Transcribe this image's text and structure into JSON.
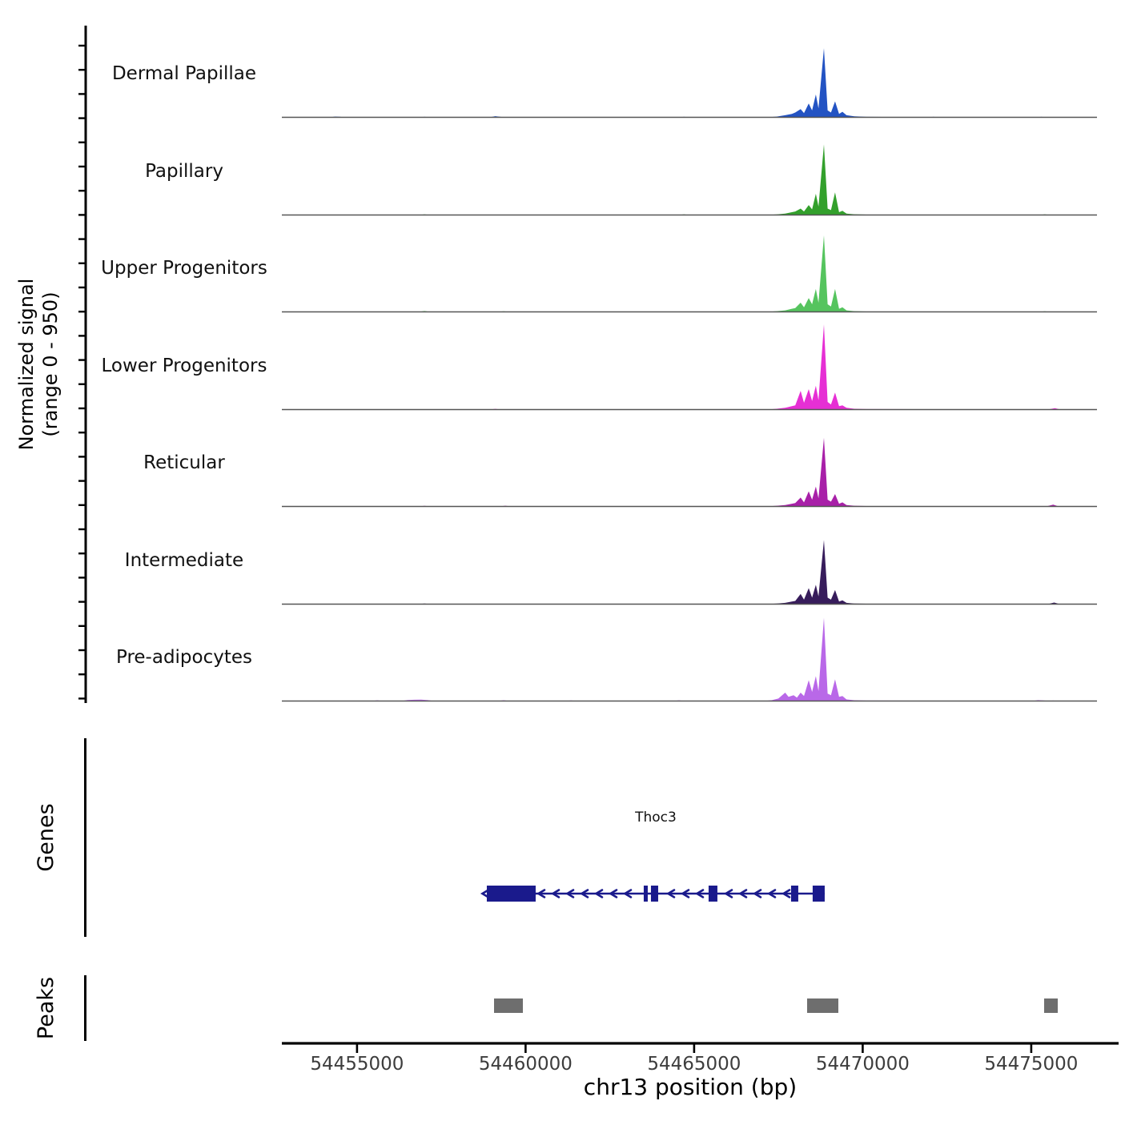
{
  "figure": {
    "y_axis_label_line1": "Normalized signal",
    "y_axis_label_line2": "(range 0 - 950)",
    "genes_section_label": "Genes",
    "peaks_section_label": "Peaks",
    "x_axis_label": "chr13 position (bp)",
    "gene_name": "Thoc3"
  },
  "chart_data": {
    "type": "area",
    "title": "",
    "chromosome": "chr13",
    "x_domain": [
      54452770,
      54476950
    ],
    "y_range_per_track": [
      0,
      950
    ],
    "x_ticks": [
      54455000,
      54460000,
      54465000,
      54470000,
      54475000
    ],
    "legend_position": "left-track-labels",
    "grid": false,
    "tracks": [
      {
        "name": "Dermal Papillae",
        "color": "#2353c3",
        "points": [
          [
            54452770,
            1
          ],
          [
            54454200,
            1
          ],
          [
            54454350,
            8
          ],
          [
            54454500,
            5
          ],
          [
            54454650,
            1
          ],
          [
            54456850,
            1
          ],
          [
            54457000,
            5
          ],
          [
            54457150,
            1
          ],
          [
            54458950,
            1
          ],
          [
            54459100,
            12
          ],
          [
            54459250,
            5
          ],
          [
            54459400,
            1
          ],
          [
            54461350,
            1
          ],
          [
            54461500,
            4
          ],
          [
            54461650,
            1
          ],
          [
            54464550,
            1
          ],
          [
            54464700,
            5
          ],
          [
            54464850,
            1
          ],
          [
            54467200,
            1
          ],
          [
            54467450,
            8
          ],
          [
            54467700,
            23
          ],
          [
            54467900,
            38
          ],
          [
            54468000,
            53
          ],
          [
            54468160,
            91
          ],
          [
            54468260,
            46
          ],
          [
            54468400,
            152
          ],
          [
            54468500,
            76
          ],
          [
            54468610,
            251
          ],
          [
            54468690,
            99
          ],
          [
            54468850,
            760
          ],
          [
            54468960,
            76
          ],
          [
            54469060,
            53
          ],
          [
            54469180,
            175
          ],
          [
            54469300,
            38
          ],
          [
            54469400,
            61
          ],
          [
            54469520,
            23
          ],
          [
            54469750,
            11
          ],
          [
            54470100,
            5
          ],
          [
            54471950,
            1
          ],
          [
            54472100,
            5
          ],
          [
            54472250,
            1
          ],
          [
            54475150,
            1
          ],
          [
            54475300,
            5
          ],
          [
            54475450,
            1
          ],
          [
            54476950,
            1
          ]
        ]
      },
      {
        "name": "Papillary",
        "color": "#33a02c",
        "points": [
          [
            54452770,
            1
          ],
          [
            54456850,
            1
          ],
          [
            54457000,
            7
          ],
          [
            54457150,
            1
          ],
          [
            54464550,
            1
          ],
          [
            54464700,
            6
          ],
          [
            54464850,
            1
          ],
          [
            54467200,
            1
          ],
          [
            54467450,
            6
          ],
          [
            54467700,
            16
          ],
          [
            54467900,
            31
          ],
          [
            54468000,
            39
          ],
          [
            54468160,
            70
          ],
          [
            54468260,
            39
          ],
          [
            54468400,
            109
          ],
          [
            54468500,
            62
          ],
          [
            54468610,
            233
          ],
          [
            54468690,
            93
          ],
          [
            54468850,
            775
          ],
          [
            54468960,
            70
          ],
          [
            54469060,
            54
          ],
          [
            54469180,
            248
          ],
          [
            54469300,
            31
          ],
          [
            54469400,
            47
          ],
          [
            54469520,
            16
          ],
          [
            54469750,
            8
          ],
          [
            54470100,
            4
          ],
          [
            54471950,
            1
          ],
          [
            54472100,
            4
          ],
          [
            54472250,
            1
          ],
          [
            54475250,
            1
          ],
          [
            54475400,
            7
          ],
          [
            54475550,
            1
          ],
          [
            54476950,
            1
          ]
        ]
      },
      {
        "name": "Upper Progenitors",
        "color": "#55c45e",
        "points": [
          [
            54452770,
            1
          ],
          [
            54456850,
            1
          ],
          [
            54457000,
            10
          ],
          [
            54457150,
            1
          ],
          [
            54459200,
            1
          ],
          [
            54459350,
            6
          ],
          [
            54459500,
            1
          ],
          [
            54467200,
            1
          ],
          [
            54467450,
            8
          ],
          [
            54467700,
            17
          ],
          [
            54467900,
            34
          ],
          [
            54468000,
            42
          ],
          [
            54468160,
            101
          ],
          [
            54468260,
            50
          ],
          [
            54468400,
            151
          ],
          [
            54468500,
            84
          ],
          [
            54468610,
            252
          ],
          [
            54468690,
            101
          ],
          [
            54468850,
            840
          ],
          [
            54468960,
            84
          ],
          [
            54469060,
            59
          ],
          [
            54469180,
            252
          ],
          [
            54469300,
            34
          ],
          [
            54469400,
            50
          ],
          [
            54469520,
            17
          ],
          [
            54469750,
            8
          ],
          [
            54470100,
            4
          ],
          [
            54475250,
            1
          ],
          [
            54475400,
            6
          ],
          [
            54475550,
            1
          ],
          [
            54476950,
            1
          ]
        ]
      },
      {
        "name": "Lower Progenitors",
        "color": "#e62fd4",
        "points": [
          [
            54452770,
            1
          ],
          [
            54458950,
            1
          ],
          [
            54459100,
            8
          ],
          [
            54459250,
            1
          ],
          [
            54461300,
            1
          ],
          [
            54461450,
            4
          ],
          [
            54461600,
            1
          ],
          [
            54467200,
            1
          ],
          [
            54467450,
            9
          ],
          [
            54467700,
            19
          ],
          [
            54467900,
            37
          ],
          [
            54468000,
            47
          ],
          [
            54468160,
            206
          ],
          [
            54468260,
            75
          ],
          [
            54468400,
            224
          ],
          [
            54468500,
            94
          ],
          [
            54468610,
            262
          ],
          [
            54468690,
            103
          ],
          [
            54468850,
            935
          ],
          [
            54468960,
            84
          ],
          [
            54469060,
            56
          ],
          [
            54469180,
            187
          ],
          [
            54469300,
            37
          ],
          [
            54469400,
            47
          ],
          [
            54469520,
            19
          ],
          [
            54469750,
            9
          ],
          [
            54470100,
            5
          ],
          [
            54475500,
            1
          ],
          [
            54475700,
            16
          ],
          [
            54475850,
            2
          ],
          [
            54476950,
            1
          ]
        ]
      },
      {
        "name": "Reticular",
        "color": "#a820a8",
        "points": [
          [
            54452770,
            1
          ],
          [
            54456850,
            1
          ],
          [
            54457000,
            7
          ],
          [
            54457150,
            1
          ],
          [
            54459250,
            1
          ],
          [
            54459400,
            8
          ],
          [
            54459550,
            1
          ],
          [
            54467200,
            1
          ],
          [
            54467450,
            8
          ],
          [
            54467700,
            15
          ],
          [
            54467900,
            30
          ],
          [
            54468000,
            38
          ],
          [
            54468160,
            98
          ],
          [
            54468260,
            45
          ],
          [
            54468400,
            166
          ],
          [
            54468500,
            75
          ],
          [
            54468610,
            219
          ],
          [
            54468690,
            91
          ],
          [
            54468850,
            755
          ],
          [
            54468960,
            75
          ],
          [
            54469060,
            53
          ],
          [
            54469180,
            136
          ],
          [
            54469300,
            30
          ],
          [
            54469400,
            45
          ],
          [
            54469520,
            15
          ],
          [
            54469750,
            8
          ],
          [
            54470100,
            4
          ],
          [
            54475450,
            1
          ],
          [
            54475650,
            20
          ],
          [
            54475800,
            2
          ],
          [
            54476950,
            1
          ]
        ]
      },
      {
        "name": "Intermediate",
        "color": "#371c5b",
        "points": [
          [
            54452770,
            1
          ],
          [
            54456850,
            1
          ],
          [
            54457000,
            7
          ],
          [
            54457150,
            1
          ],
          [
            54467200,
            1
          ],
          [
            54467450,
            7
          ],
          [
            54467700,
            14
          ],
          [
            54467900,
            28
          ],
          [
            54468000,
            35
          ],
          [
            54468160,
            113
          ],
          [
            54468260,
            49
          ],
          [
            54468400,
            176
          ],
          [
            54468500,
            71
          ],
          [
            54468610,
            212
          ],
          [
            54468690,
            85
          ],
          [
            54468850,
            705
          ],
          [
            54468960,
            71
          ],
          [
            54469060,
            49
          ],
          [
            54469180,
            155
          ],
          [
            54469300,
            28
          ],
          [
            54469400,
            42
          ],
          [
            54469520,
            14
          ],
          [
            54469750,
            7
          ],
          [
            54470100,
            4
          ],
          [
            54475500,
            1
          ],
          [
            54475680,
            18
          ],
          [
            54475830,
            2
          ],
          [
            54476950,
            1
          ]
        ]
      },
      {
        "name": "Pre-adipocytes",
        "color": "#b968e8",
        "points": [
          [
            54452770,
            1
          ],
          [
            54455450,
            1
          ],
          [
            54455600,
            8
          ],
          [
            54455750,
            1
          ],
          [
            54456350,
            2
          ],
          [
            54456500,
            11
          ],
          [
            54456700,
            14
          ],
          [
            54456900,
            16
          ],
          [
            54457100,
            10
          ],
          [
            54457250,
            2
          ],
          [
            54459200,
            1
          ],
          [
            54459350,
            9
          ],
          [
            54459500,
            1
          ],
          [
            54461200,
            1
          ],
          [
            54461350,
            7
          ],
          [
            54461500,
            1
          ],
          [
            54464400,
            1
          ],
          [
            54464550,
            8
          ],
          [
            54464700,
            1
          ],
          [
            54467100,
            3
          ],
          [
            54467300,
            9
          ],
          [
            54467500,
            27
          ],
          [
            54467700,
            92
          ],
          [
            54467800,
            46
          ],
          [
            54467950,
            64
          ],
          [
            54468050,
            37
          ],
          [
            54468160,
            92
          ],
          [
            54468260,
            55
          ],
          [
            54468400,
            229
          ],
          [
            54468500,
            101
          ],
          [
            54468610,
            274
          ],
          [
            54468690,
            110
          ],
          [
            54468850,
            915
          ],
          [
            54468960,
            82
          ],
          [
            54469060,
            64
          ],
          [
            54469180,
            238
          ],
          [
            54469300,
            46
          ],
          [
            54469400,
            55
          ],
          [
            54469520,
            18
          ],
          [
            54469750,
            9
          ],
          [
            54470100,
            5
          ],
          [
            54475050,
            1
          ],
          [
            54475200,
            10
          ],
          [
            54475350,
            7
          ],
          [
            54475500,
            2
          ],
          [
            54475650,
            5
          ],
          [
            54475780,
            1
          ],
          [
            54476950,
            1
          ]
        ]
      }
    ],
    "gene": {
      "name": "Thoc3",
      "strand": "-",
      "start": 54458850,
      "end": 54468873,
      "color": "#1a1a8c",
      "exons": [
        [
          54458850,
          54460299
        ],
        [
          54463505,
          54463624
        ],
        [
          54463719,
          54463933
        ],
        [
          54465429,
          54465690
        ],
        [
          54467875,
          54468089
        ],
        [
          54468516,
          54468873
        ]
      ]
    },
    "peaks": {
      "color": "#6e6e6e",
      "regions": [
        [
          54459064,
          54459919
        ],
        [
          54468350,
          54469277
        ],
        [
          54475382,
          54475786
        ]
      ]
    },
    "baseline_color": "#555555",
    "axis_color": "#000000",
    "tick_label_color": "#3d3d3d"
  }
}
